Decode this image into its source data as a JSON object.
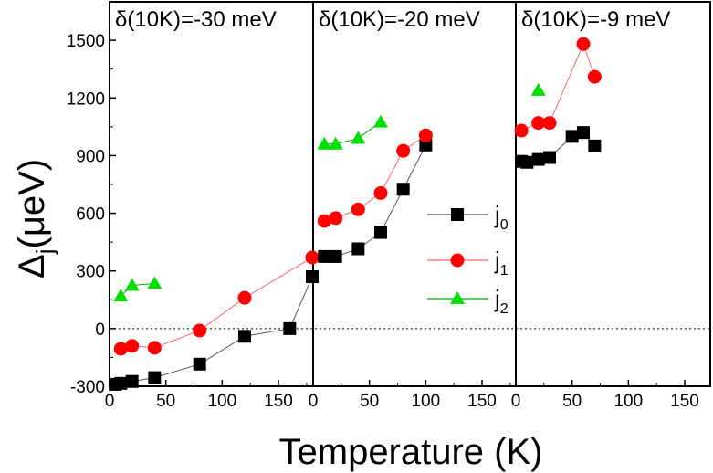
{
  "chart_data": {
    "type": "scatter",
    "xlabel": "Temperature (K)",
    "ylabel": "Δ",
    "ylabel_subscript": "j",
    "ylabel_unit": "(μeV)",
    "ylim": [
      -300,
      1700
    ],
    "yticks": [
      -300,
      0,
      300,
      600,
      900,
      1200,
      1500
    ],
    "xlim": [
      0,
      180
    ],
    "xticks": [
      0,
      50,
      100,
      150
    ],
    "zero_line": "dotted",
    "legend_position": "right of middle panel",
    "series_styles": [
      {
        "label": "j",
        "sub": "0",
        "marker": "square",
        "color": "#000000",
        "line": "#555555"
      },
      {
        "label": "j",
        "sub": "1",
        "marker": "circle",
        "color": "#ff0000",
        "line": "#ff6666"
      },
      {
        "label": "j",
        "sub": "2",
        "marker": "triangle",
        "color": "#00dd00",
        "line": "#00aa00"
      }
    ],
    "panels": [
      {
        "title": "δ(10K)=-30 meV",
        "series": [
          {
            "x": [
              5,
              10,
              20,
              40,
              80,
              120,
              160,
              180
            ],
            "y": [
              -290,
              -285,
              -275,
              -255,
              -185,
              -40,
              0,
              270
            ]
          },
          {
            "x": [
              10,
              20,
              40,
              80,
              120,
              180
            ],
            "y": [
              -105,
              -90,
              -100,
              -10,
              160,
              370
            ]
          },
          {
            "x": [
              10,
              20,
              40
            ],
            "y": [
              170,
              225,
              235
            ]
          }
        ]
      },
      {
        "title": "δ(10K)=-20 meV",
        "series": [
          {
            "x": [
              10,
              20,
              40,
              60,
              80,
              100
            ],
            "y": [
              375,
              375,
              415,
              500,
              725,
              955
            ]
          },
          {
            "x": [
              10,
              20,
              40,
              60,
              80,
              100
            ],
            "y": [
              560,
              575,
              620,
              705,
              925,
              1005
            ]
          },
          {
            "x": [
              10,
              20,
              40,
              60
            ],
            "y": [
              960,
              960,
              990,
              1075
            ]
          }
        ]
      },
      {
        "title": "δ(10K)=-9 meV",
        "series": [
          {
            "x": [
              5,
              10,
              20,
              30,
              50,
              60,
              70
            ],
            "y": [
              870,
              865,
              880,
              890,
              1000,
              1020,
              950
            ]
          },
          {
            "x": [
              5,
              20,
              30,
              60,
              70
            ],
            "y": [
              1030,
              1070,
              1070,
              1480,
              1310
            ]
          },
          {
            "x": [
              20
            ],
            "y": [
              1240
            ]
          }
        ]
      }
    ]
  }
}
